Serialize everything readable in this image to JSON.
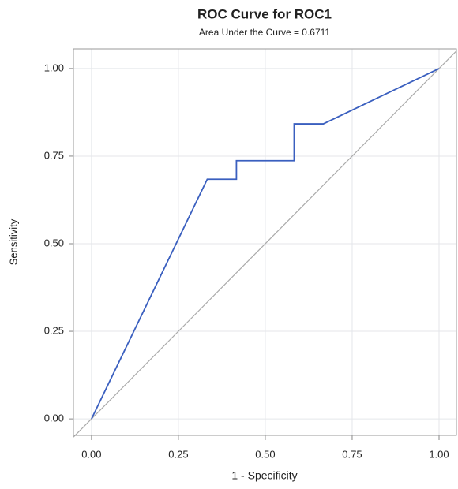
{
  "chart_data": {
    "type": "line",
    "title": "ROC Curve for ROC1",
    "subtitle": "Area Under the Curve = 0.6711",
    "x_label": "1 - Specificity",
    "y_label": "Sensitivity",
    "x": [
      0,
      0.333,
      0.417,
      0.417,
      0.583,
      0.583,
      0.667,
      1
    ],
    "series": [
      {
        "color": "#3a5fbf",
        "values": [
          0,
          0.684,
          0.684,
          0.737,
          0.737,
          0.842,
          0.842,
          1
        ]
      }
    ],
    "xlim": [
      -0.052,
      1.05
    ],
    "ylim": [
      -0.047,
      1.056
    ],
    "xticks": [
      {
        "value": 0,
        "label": "0.00"
      },
      {
        "value": 0.25,
        "label": "0.25"
      },
      {
        "value": 0.5,
        "label": "0.50"
      },
      {
        "value": 0.75,
        "label": "0.75"
      },
      {
        "value": 1,
        "label": "1.00"
      }
    ],
    "yticks": [
      {
        "value": 0,
        "label": "0.00"
      },
      {
        "value": 0.25,
        "label": "0.25"
      },
      {
        "value": 0.5,
        "label": "0.50"
      },
      {
        "value": 0.75,
        "label": "0.75"
      },
      {
        "value": 1,
        "label": "1.00"
      }
    ],
    "grid": true
  }
}
